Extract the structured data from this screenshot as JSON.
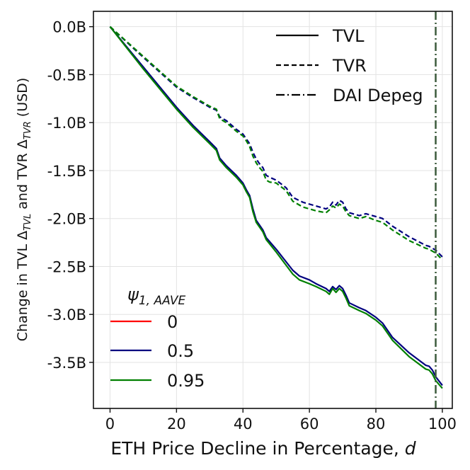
{
  "chart_data": {
    "type": "line",
    "xlabel_text": "ETH Price Decline in Percentage, ",
    "xlabel_var": "d",
    "ylabel": {
      "prefix": "Change in TVL Δ",
      "sub1": "TVL",
      "mid": " and TVR Δ",
      "sub2": "TVR",
      "suffix": " (USD)"
    },
    "xlim": [
      -5,
      103
    ],
    "ylim": [
      -3.98,
      0.16
    ],
    "x_ticks": [
      0,
      20,
      40,
      60,
      80,
      100
    ],
    "x_tick_labels": [
      "0",
      "20",
      "40",
      "60",
      "80",
      "100"
    ],
    "y_ticks": [
      0,
      -0.5,
      -1.0,
      -1.5,
      -2.0,
      -2.5,
      -3.0,
      -3.5
    ],
    "y_tick_labels": [
      "0.0B",
      "-0.5B",
      "-1.0B",
      "-1.5B",
      "-2.0B",
      "-2.5B",
      "-3.0B",
      "-3.5B"
    ],
    "grid": true,
    "depeg_x": 98,
    "style_legend": {
      "position": "top-right",
      "entries": [
        {
          "label": "TVL",
          "dash": "solid"
        },
        {
          "label": "TVR",
          "dash": "dashed"
        },
        {
          "label": "DAI Depeg",
          "dash": "dashdot"
        }
      ]
    },
    "psi_legend": {
      "position": "lower-left",
      "title": "ψ",
      "title_sub": "1, AAVE",
      "entries": [
        {
          "label": "0",
          "color": "#ff0000"
        },
        {
          "label": "0.5",
          "color": "#00007f"
        },
        {
          "label": "0.95",
          "color": "#008000"
        }
      ]
    },
    "series": [
      {
        "name": "TVL ψ=0.5",
        "metric": "TVL",
        "psi": "0.5",
        "color": "#00007f",
        "dash": "solid",
        "x": [
          0,
          10,
          20,
          25,
          30,
          32,
          33,
          35,
          38,
          40,
          41,
          42,
          43,
          44,
          45,
          46,
          47,
          50,
          55,
          57,
          60,
          62,
          65,
          66,
          67,
          68,
          69,
          70,
          71,
          72,
          75,
          77,
          80,
          82,
          85,
          90,
          95,
          96,
          97,
          98,
          100
        ],
        "y": [
          0,
          -0.42,
          -0.84,
          -1.03,
          -1.2,
          -1.27,
          -1.37,
          -1.45,
          -1.55,
          -1.63,
          -1.7,
          -1.76,
          -1.9,
          -2.02,
          -2.07,
          -2.12,
          -2.2,
          -2.32,
          -2.54,
          -2.6,
          -2.64,
          -2.68,
          -2.73,
          -2.76,
          -2.71,
          -2.74,
          -2.7,
          -2.73,
          -2.8,
          -2.88,
          -2.93,
          -2.96,
          -3.03,
          -3.09,
          -3.24,
          -3.4,
          -3.53,
          -3.54,
          -3.58,
          -3.65,
          -3.74
        ]
      },
      {
        "name": "TVL ψ=0.95",
        "metric": "TVL",
        "psi": "0.95",
        "color": "#008000",
        "dash": "solid",
        "x": [
          0,
          10,
          20,
          25,
          30,
          32,
          33,
          35,
          38,
          40,
          41,
          42,
          43,
          44,
          45,
          46,
          47,
          50,
          55,
          57,
          60,
          62,
          65,
          66,
          67,
          68,
          69,
          70,
          71,
          72,
          75,
          77,
          80,
          82,
          85,
          90,
          95,
          96,
          97,
          98,
          100
        ],
        "y": [
          0,
          -0.44,
          -0.86,
          -1.05,
          -1.22,
          -1.29,
          -1.39,
          -1.47,
          -1.57,
          -1.65,
          -1.72,
          -1.78,
          -1.93,
          -2.04,
          -2.09,
          -2.14,
          -2.22,
          -2.35,
          -2.58,
          -2.64,
          -2.68,
          -2.71,
          -2.76,
          -2.79,
          -2.73,
          -2.77,
          -2.73,
          -2.76,
          -2.83,
          -2.91,
          -2.96,
          -2.99,
          -3.06,
          -3.12,
          -3.27,
          -3.44,
          -3.57,
          -3.58,
          -3.62,
          -3.69,
          -3.77
        ]
      },
      {
        "name": "TVR ψ=0.5",
        "metric": "TVR",
        "psi": "0.5",
        "color": "#00007f",
        "dash": "dashed",
        "x": [
          0,
          10,
          20,
          25,
          30,
          32,
          33,
          35,
          38,
          40,
          41,
          42,
          43,
          44,
          45,
          46,
          47,
          48,
          50,
          53,
          55,
          58,
          60,
          62,
          65,
          66,
          67,
          68,
          69,
          70,
          71,
          72,
          75,
          77,
          80,
          82,
          85,
          90,
          95,
          96,
          97,
          98,
          100
        ],
        "y": [
          0,
          -0.32,
          -0.63,
          -0.74,
          -0.84,
          -0.87,
          -0.94,
          -0.98,
          -1.07,
          -1.12,
          -1.17,
          -1.22,
          -1.31,
          -1.38,
          -1.43,
          -1.47,
          -1.55,
          -1.57,
          -1.6,
          -1.68,
          -1.78,
          -1.83,
          -1.85,
          -1.87,
          -1.9,
          -1.88,
          -1.83,
          -1.86,
          -1.81,
          -1.83,
          -1.9,
          -1.94,
          -1.97,
          -1.95,
          -1.98,
          -2.0,
          -2.08,
          -2.19,
          -2.28,
          -2.29,
          -2.31,
          -2.33,
          -2.4
        ]
      },
      {
        "name": "TVR ψ=0.95",
        "metric": "TVR",
        "psi": "0.95",
        "color": "#008000",
        "dash": "dashed",
        "x": [
          0,
          10,
          20,
          25,
          30,
          32,
          33,
          35,
          38,
          40,
          41,
          42,
          43,
          44,
          45,
          46,
          47,
          48,
          50,
          53,
          55,
          58,
          60,
          62,
          65,
          66,
          67,
          68,
          69,
          70,
          71,
          72,
          75,
          77,
          80,
          82,
          85,
          90,
          95,
          96,
          97,
          98,
          100
        ],
        "y": [
          0,
          -0.31,
          -0.62,
          -0.73,
          -0.83,
          -0.86,
          -0.96,
          -1.0,
          -1.09,
          -1.14,
          -1.19,
          -1.25,
          -1.35,
          -1.42,
          -1.47,
          -1.51,
          -1.6,
          -1.62,
          -1.63,
          -1.71,
          -1.82,
          -1.88,
          -1.9,
          -1.92,
          -1.94,
          -1.91,
          -1.87,
          -1.89,
          -1.85,
          -1.87,
          -1.93,
          -1.97,
          -2.0,
          -1.98,
          -2.02,
          -2.04,
          -2.12,
          -2.23,
          -2.31,
          -2.32,
          -2.34,
          -2.36,
          -2.43
        ]
      }
    ]
  }
}
